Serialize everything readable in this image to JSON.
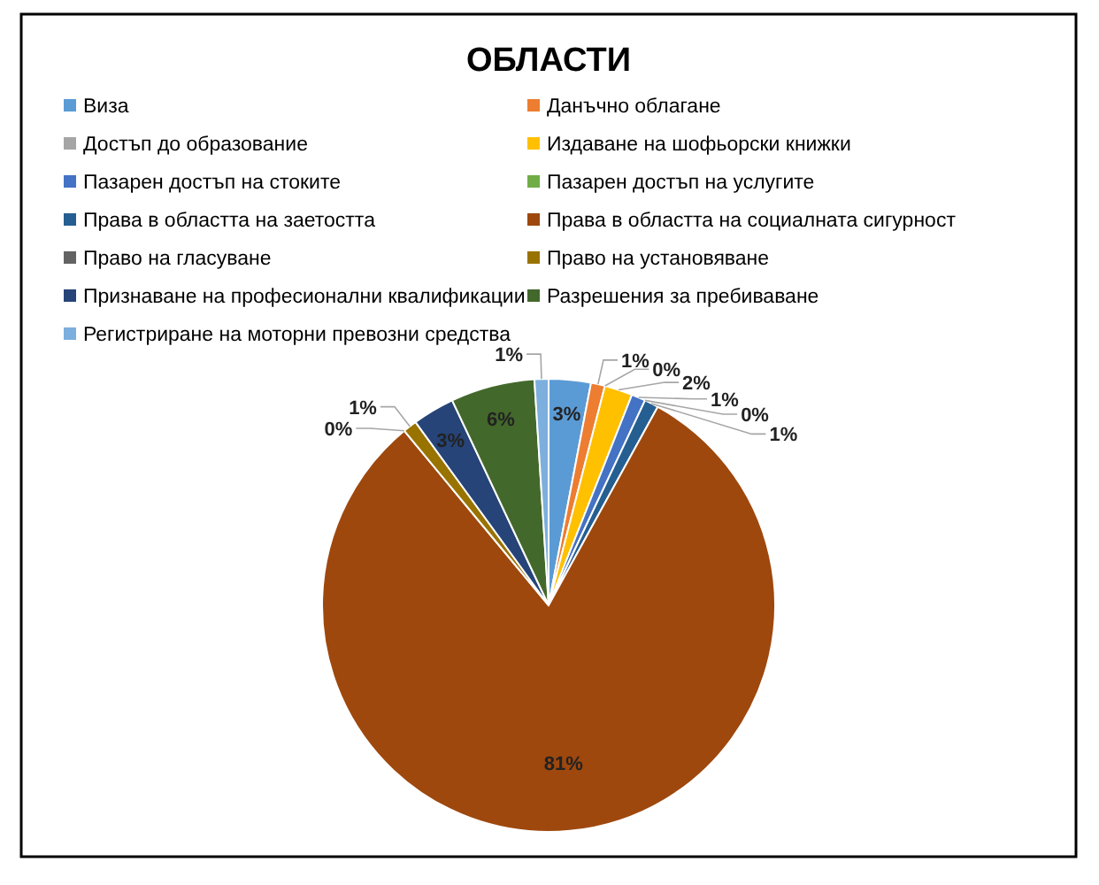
{
  "chart_data": {
    "type": "pie",
    "title": "ОБЛАСТИ",
    "categories": [
      "Виза",
      "Данъчно облагане",
      "Достъп до образование",
      "Издаване на шофьорски книжки",
      "Пазарен достъп на стоките",
      "Пазарен достъп на услугите",
      "Права в областта на заетостта",
      "Права в областта на социалната сигурност",
      "Право на гласуване",
      "Право на установяване",
      "Признаване на професионални квалификации",
      "Разрешения за пребиваване",
      "Регистриране на моторни превозни средства"
    ],
    "values": [
      3,
      1,
      0,
      2,
      1,
      0,
      1,
      81,
      0,
      1,
      3,
      6,
      1
    ],
    "colors": [
      "#5b9bd5",
      "#ed7d31",
      "#a5a5a5",
      "#ffc000",
      "#4472c4",
      "#70ad47",
      "#255e91",
      "#9e480e",
      "#636363",
      "#997300",
      "#264478",
      "#43682b",
      "#7cafdd"
    ],
    "value_labels": [
      "3%",
      "1%",
      "0%",
      "2%",
      "1%",
      "0%",
      "1%",
      "81%",
      "0%",
      "1%",
      "3%",
      "6%",
      "1%"
    ],
    "legend": "top"
  }
}
